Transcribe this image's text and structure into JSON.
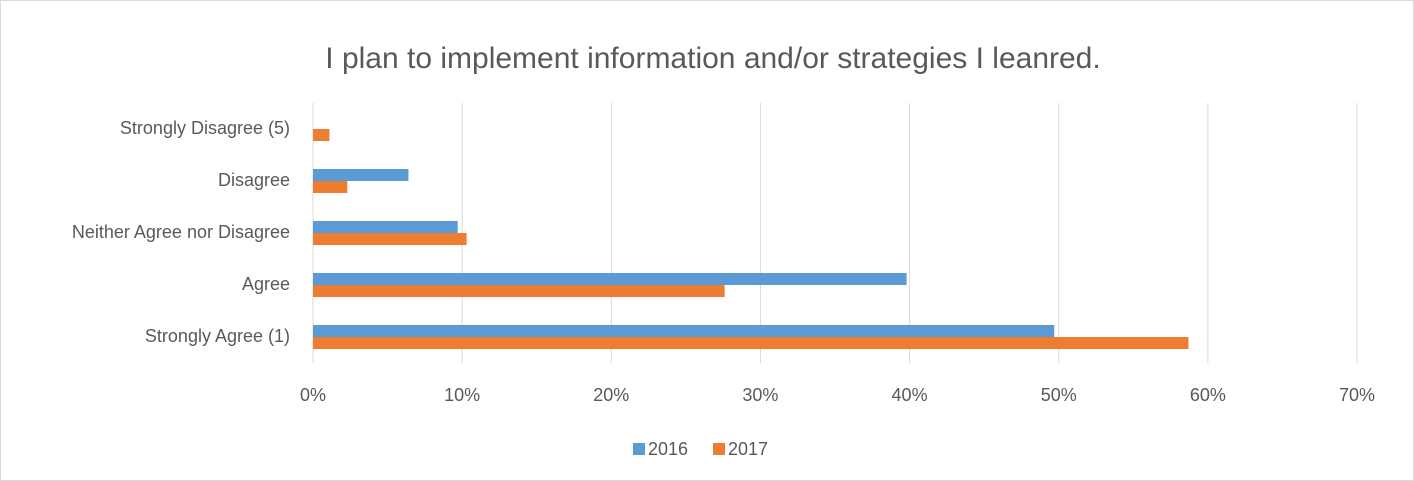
{
  "chart_data": {
    "type": "bar",
    "orientation": "horizontal",
    "title": "I plan to implement information and/or strategies I leanred.",
    "categories": [
      "Strongly Disagree (5)",
      "Disagree",
      "Neither Agree nor Disagree",
      "Agree",
      "Strongly Agree (1)"
    ],
    "series": [
      {
        "name": "2016",
        "color": "#5b9bd5",
        "values": [
          0,
          6.4,
          9.7,
          39.8,
          49.7
        ]
      },
      {
        "name": "2017",
        "color": "#ed7d31",
        "values": [
          1.1,
          2.3,
          10.3,
          27.6,
          58.7
        ]
      }
    ],
    "xlim": [
      0,
      70
    ],
    "xticks": [
      {
        "value": 0,
        "label": "0%"
      },
      {
        "value": 10,
        "label": "10%"
      },
      {
        "value": 20,
        "label": "20%"
      },
      {
        "value": 30,
        "label": "30%"
      },
      {
        "value": 40,
        "label": "40%"
      },
      {
        "value": 50,
        "label": "50%"
      },
      {
        "value": 60,
        "label": "60%"
      },
      {
        "value": 70,
        "label": "70%"
      }
    ],
    "grid": true,
    "legend": "bottom"
  }
}
